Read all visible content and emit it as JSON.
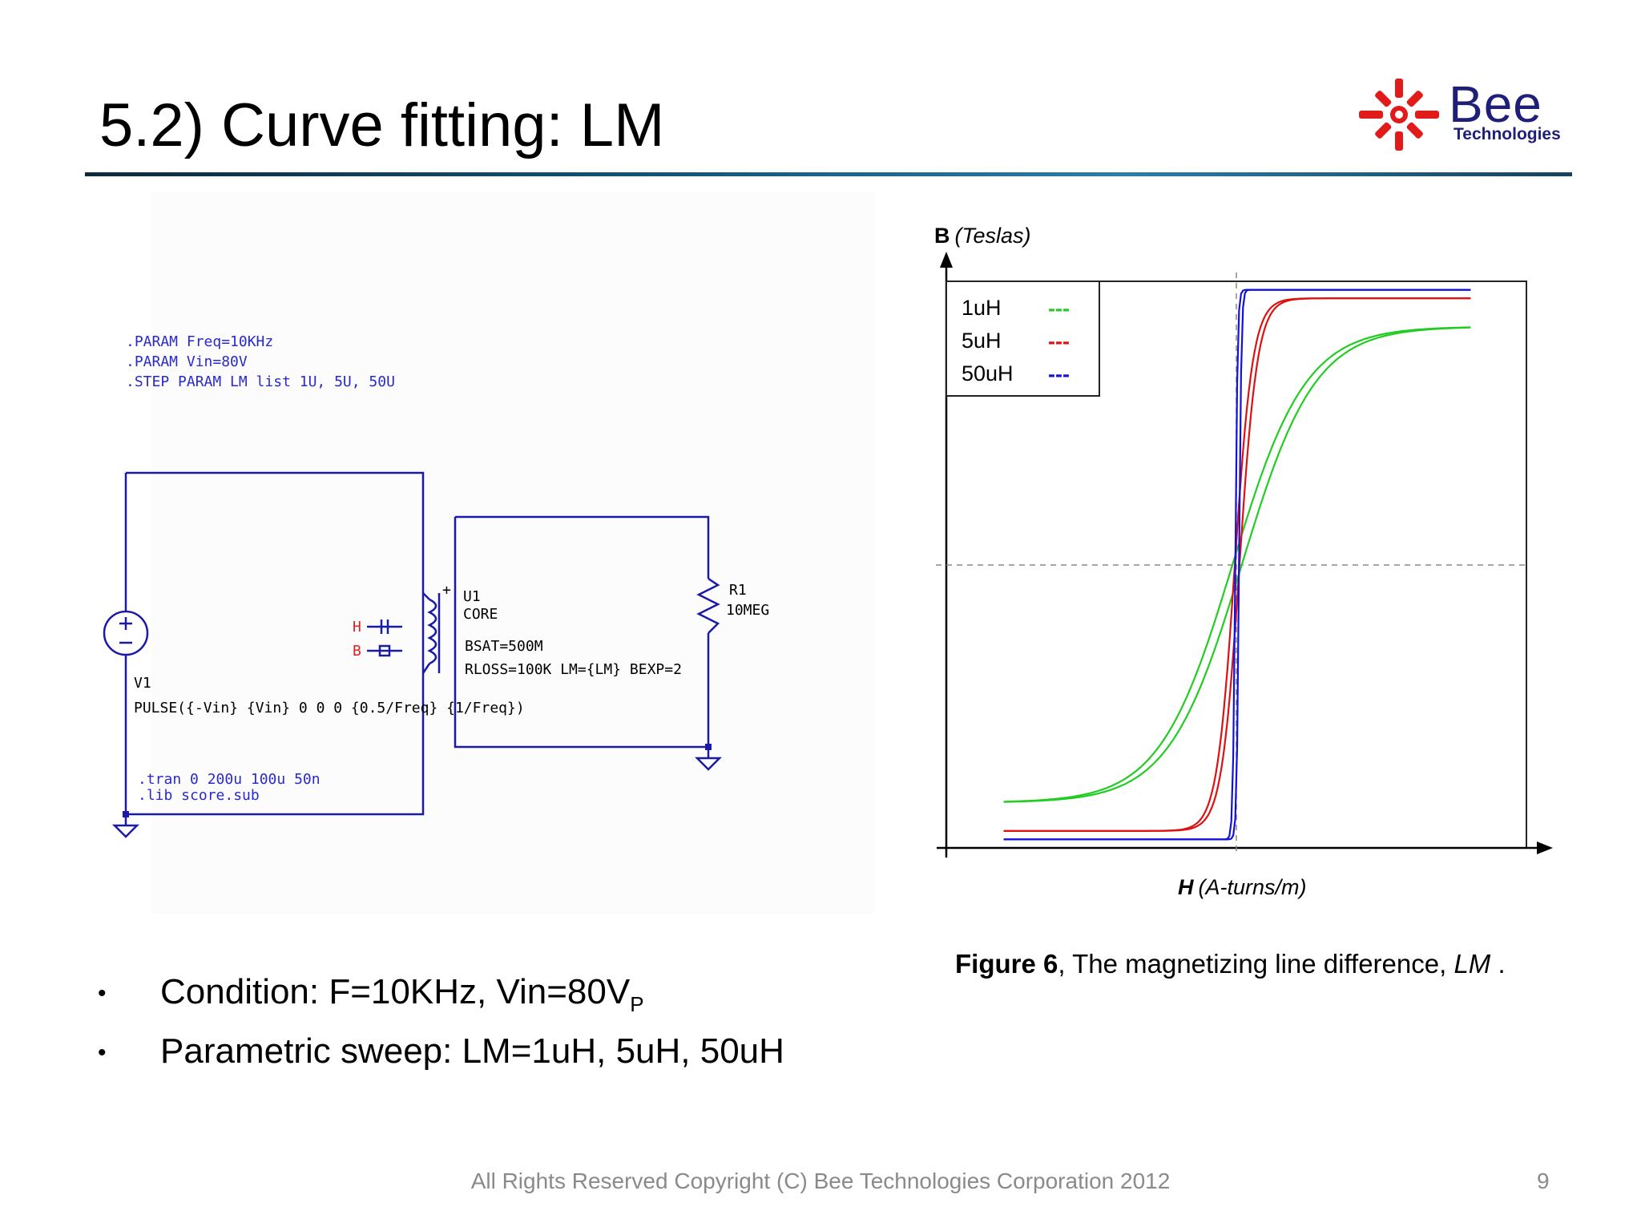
{
  "slide": {
    "title": "5.2) Curve fitting: LM",
    "logo": {
      "word": "Bee",
      "subtitle": "Technologies",
      "brand_color": "#1f1f7a",
      "mark_color": "#e11a1a"
    },
    "page_number": "9",
    "footer": "All Rights Reserved Copyright (C) Bee Technologies Corporation 2012"
  },
  "schematic": {
    "params": [
      ".PARAM Freq=10KHz",
      ".PARAM Vin=80V",
      ".STEP PARAM LM list 1U, 5U, 50U"
    ],
    "source_name": "V1",
    "source_value": "PULSE({-Vin} {Vin} 0 0 0 {0.5/Freq} {1/Freq})",
    "sim_commands": [
      ".tran 0 200u 100u 50n",
      ".lib score.sub"
    ],
    "core_name": "U1",
    "core_type": "CORE",
    "core_params": [
      "BSAT=500M",
      "RLOSS=100K LM={LM} BEXP=2"
    ],
    "resistor_name": "R1",
    "resistor_value": "10MEG",
    "probe_h": "H",
    "probe_b": "B",
    "plus_sign": "+",
    "wire_color": "#1a1aa6",
    "text_color": "#2a2acc",
    "probe_color": "#e02020"
  },
  "bullets": [
    {
      "text": "Condition: F=10KHz, Vin=80V",
      "subscript": "P"
    },
    {
      "text": "Parametric sweep: LM=1uH, 5uH, 50uH",
      "subscript": ""
    }
  ],
  "caption": {
    "bold": "Figure 6",
    "text": ", The magnetizing line difference, ",
    "italic": "LM",
    "end": " ."
  },
  "chart_data": {
    "type": "line",
    "title": "",
    "ylabel_bold": "B",
    "ylabel": "(Teslas)",
    "xlabel_bold": "H",
    "xlabel": "(A-turns/m)",
    "xlim": [
      -1,
      1
    ],
    "ylim": [
      -1,
      1
    ],
    "grid": "dashed crosshair at origin",
    "legend_position": "top-left",
    "legend_marker": "---",
    "series": [
      {
        "name": "1uH",
        "color": "#22cc22",
        "saturation": 0.84,
        "steepness": 3.2,
        "hysteresis": 0.02
      },
      {
        "name": "5uH",
        "color": "#dd1111",
        "saturation": 0.94,
        "steepness": 13,
        "hysteresis": 0.01
      },
      {
        "name": "50uH",
        "color": "#1111dd",
        "saturation": 0.97,
        "steepness": 100,
        "hysteresis": 0.008
      }
    ]
  }
}
